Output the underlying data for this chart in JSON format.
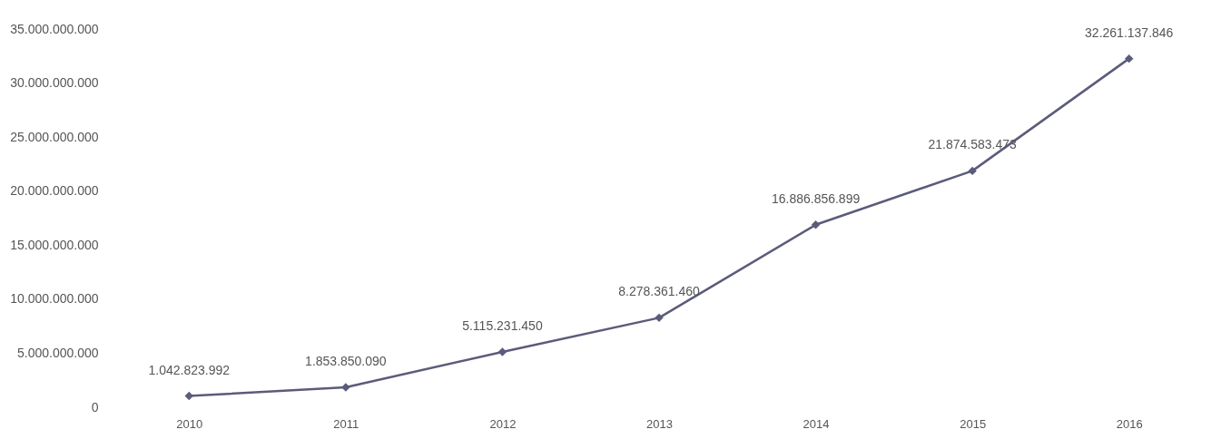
{
  "chart_data": {
    "type": "line",
    "categories": [
      "2010",
      "2011",
      "2012",
      "2013",
      "2014",
      "2015",
      "2016"
    ],
    "series": [
      {
        "color": "#5b5b7b",
        "values": [
          1042823992,
          1853850090,
          5115231450,
          8278361460,
          16886856899,
          21874583473,
          32261137846
        ],
        "value_labels": [
          "1.042.823.992",
          "1.853.850.090",
          "5.115.231.450",
          "8.278.361.460",
          "16.886.856.899",
          "21.874.583.473",
          "32.261.137.846"
        ]
      }
    ],
    "ylim": [
      0,
      35000000000
    ],
    "yticks": [
      0,
      {
        "value": 5000000000,
        "label": "5.000.000.000"
      },
      {
        "value": 10000000000,
        "label": "10.000.000.000"
      },
      {
        "value": 15000000000,
        "label": "15.000.000.000"
      },
      {
        "value": 20000000000,
        "label": "20.000.000.000"
      },
      {
        "value": 25000000000,
        "label": "25.000.000.000"
      },
      {
        "value": 30000000000,
        "label": "30.000.000.000"
      },
      {
        "value": 35000000000,
        "label": "35.000.000.000"
      }
    ],
    "marker": "diamond",
    "line_style": "solid",
    "grid": false
  }
}
